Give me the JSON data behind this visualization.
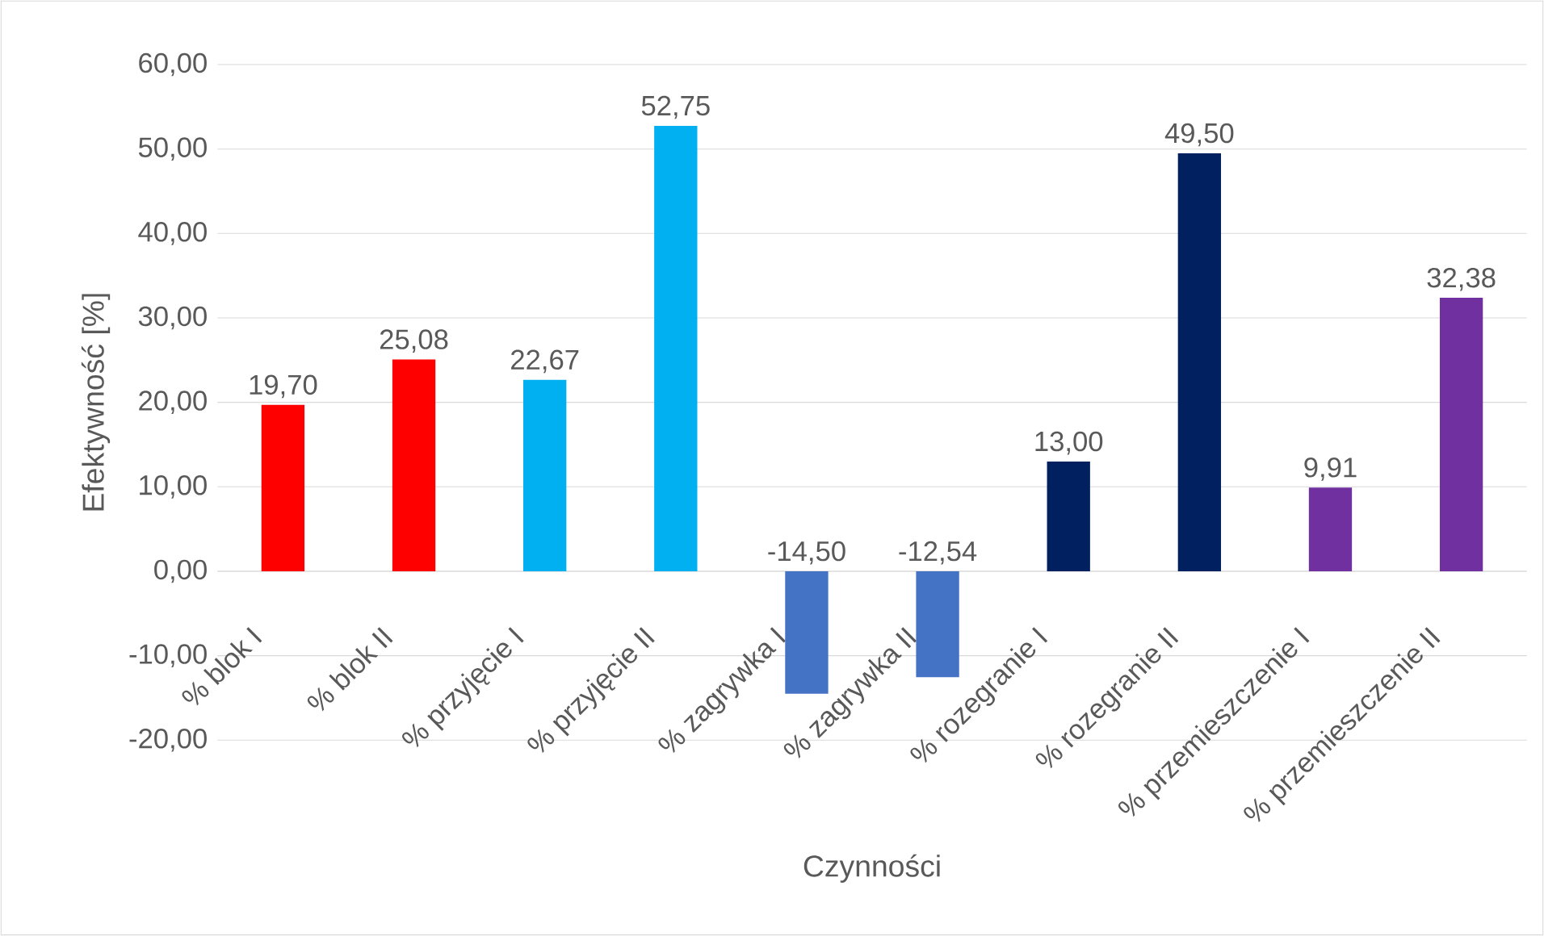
{
  "chart_data": {
    "type": "bar",
    "xlabel": "Czynności",
    "ylabel": "Efektywność [%]",
    "categories": [
      "% blok I",
      "% blok II",
      "% przyjęcie I",
      "% przyjęcie II",
      "% zagrywka I",
      "% zagrywka II",
      "% rozegranie I",
      "% rozegranie II",
      "% przemieszczenie I",
      "% przemieszczenie II"
    ],
    "values": [
      19.7,
      25.08,
      22.67,
      52.75,
      -14.5,
      -12.54,
      13.0,
      49.5,
      9.91,
      32.38
    ],
    "value_labels": [
      "19,70",
      "25,08",
      "22,67",
      "52,75",
      "-14,50",
      "-12,54",
      "13,00",
      "49,50",
      "9,91",
      "32,38"
    ],
    "colors": [
      "#ff0000",
      "#ff0000",
      "#00b0f0",
      "#00b0f0",
      "#4472c4",
      "#4472c4",
      "#002060",
      "#002060",
      "#7030a0",
      "#7030a0"
    ],
    "ylim": [
      -20,
      60
    ],
    "yticks": [
      {
        "value": -20,
        "label": "-20,00"
      },
      {
        "value": -10,
        "label": "-10,00"
      },
      {
        "value": 0,
        "label": "0,00"
      },
      {
        "value": 10,
        "label": "10,00"
      },
      {
        "value": 20,
        "label": "20,00"
      },
      {
        "value": 30,
        "label": "30,00"
      },
      {
        "value": 40,
        "label": "40,00"
      },
      {
        "value": 50,
        "label": "50,00"
      },
      {
        "value": 60,
        "label": "60,00"
      }
    ],
    "grid": "y"
  }
}
